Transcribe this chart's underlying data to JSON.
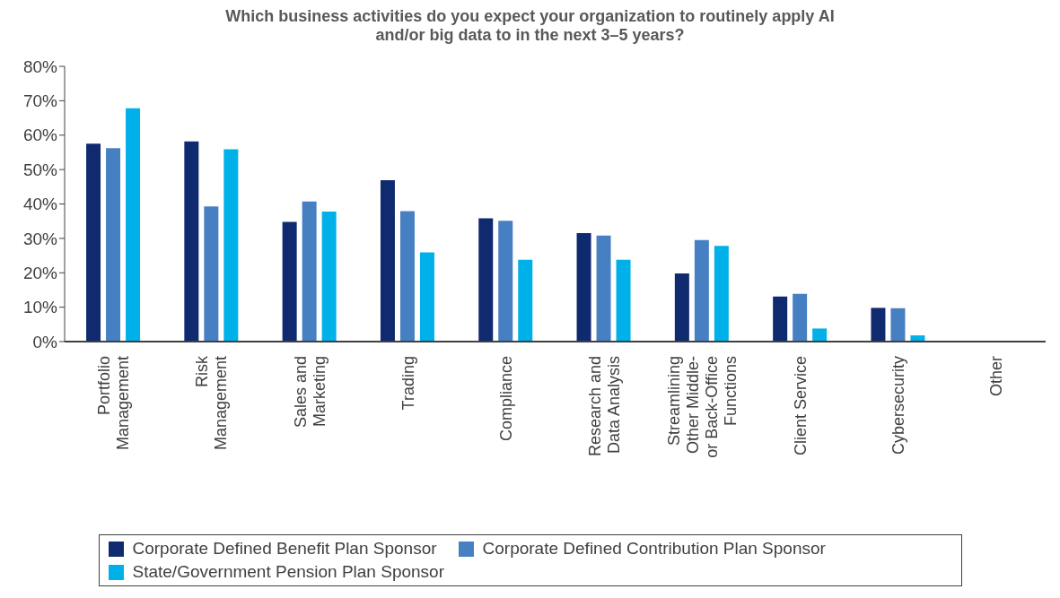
{
  "chart_data": {
    "type": "bar",
    "title": "Which business activities do you expect your organization to routinely apply AI and/or big data to in the next 3–5 years?",
    "categories": [
      "Portfolio Management",
      "Risk Management",
      "Sales and Marketing",
      "Trading",
      "Compliance",
      "Research and Data Analysis",
      "Streamlining Other Middle- or Back-Office Functions",
      "Client Service",
      "Cybersecurity",
      "Other"
    ],
    "series": [
      {
        "name": "Corporate Defined Benefit Plan Sponsor",
        "color": "#0f2a6e",
        "values": [
          57.5,
          58.2,
          34.8,
          46.9,
          35.8,
          31.5,
          19.8,
          13.1,
          9.8,
          0
        ]
      },
      {
        "name": "Corporate Defined Contribution Plan Sponsor",
        "color": "#4680c2",
        "values": [
          56.2,
          39.3,
          40.7,
          37.9,
          35.1,
          30.8,
          29.5,
          13.9,
          9.7,
          0
        ]
      },
      {
        "name": "State/Government Pension Plan Sponsor",
        "color": "#00b0e8",
        "values": [
          67.8,
          55.9,
          37.8,
          25.9,
          23.8,
          23.8,
          27.8,
          3.8,
          1.8,
          0
        ]
      }
    ],
    "ylim": [
      0,
      80
    ],
    "yticks": [
      {
        "value": 0,
        "label": "0%"
      },
      {
        "value": 10,
        "label": "10%"
      },
      {
        "value": 20,
        "label": "20%"
      },
      {
        "value": 30,
        "label": "30%"
      },
      {
        "value": 40,
        "label": "40%"
      },
      {
        "value": 50,
        "label": "50%"
      },
      {
        "value": 60,
        "label": "60%"
      },
      {
        "value": 70,
        "label": "70%"
      },
      {
        "value": 80,
        "label": "80%"
      }
    ],
    "grid": false,
    "legend": "bottom"
  }
}
